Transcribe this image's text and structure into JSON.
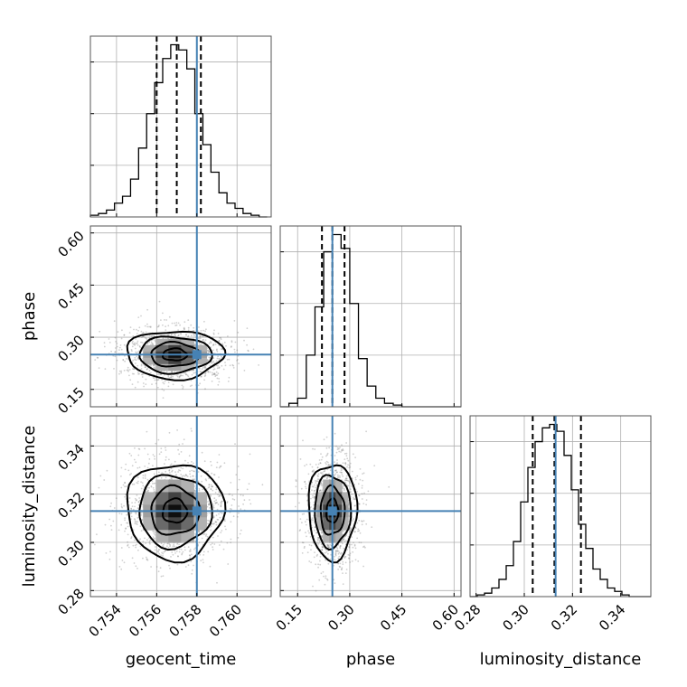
{
  "chart_data": {
    "type": "corner",
    "parameters": [
      "geocent_time",
      "phase",
      "luminosity_distance"
    ],
    "truth_color": "#4682b4",
    "truths": {
      "geocent_time": 0.758,
      "phase": 0.25,
      "luminosity_distance": 0.313
    },
    "quantiles": {
      "geocent_time": [
        0.756,
        0.757,
        0.7582
      ],
      "phase": [
        0.22,
        0.25,
        0.285
      ],
      "luminosity_distance": [
        0.3035,
        0.3125,
        0.3235
      ]
    },
    "ranges": {
      "geocent_time": [
        0.7527,
        0.7617
      ],
      "phase": [
        0.1,
        0.62
      ],
      "luminosity_distance": [
        0.2775,
        0.3525
      ]
    },
    "ticks": {
      "geocent_time": [
        0.754,
        0.756,
        0.758,
        0.76
      ],
      "phase": [
        0.15,
        0.3,
        0.45,
        0.6
      ],
      "luminosity_distance": [
        0.28,
        0.3,
        0.32,
        0.34
      ]
    },
    "tick_labels": {
      "geocent_time": [
        "0.754",
        "0.756",
        "0.758",
        "0.760"
      ],
      "phase": [
        "0.15",
        "0.30",
        "0.45",
        "0.60"
      ],
      "luminosity_distance": [
        "0.28",
        "0.30",
        "0.32",
        "0.34"
      ]
    },
    "histograms": {
      "geocent_time": {
        "bin_edges": [
          0.7527,
          0.7531,
          0.7535,
          0.7539,
          0.7543,
          0.7547,
          0.7551,
          0.7555,
          0.7559,
          0.7563,
          0.7567,
          0.7571,
          0.7575,
          0.7579,
          0.7583,
          0.7587,
          0.7591,
          0.7595,
          0.7599,
          0.7603,
          0.7607,
          0.7611,
          0.7615
        ],
        "counts": [
          0.01,
          0.02,
          0.04,
          0.08,
          0.12,
          0.22,
          0.4,
          0.6,
          0.78,
          0.92,
          1.0,
          0.97,
          0.86,
          0.6,
          0.42,
          0.26,
          0.14,
          0.08,
          0.05,
          0.02,
          0.01,
          0.0
        ]
      },
      "phase": {
        "bin_edges": [
          0.1,
          0.125,
          0.15,
          0.175,
          0.2,
          0.225,
          0.25,
          0.275,
          0.3,
          0.325,
          0.35,
          0.375,
          0.4,
          0.425,
          0.45,
          0.475,
          0.5,
          0.525,
          0.55,
          0.575,
          0.6,
          0.62
        ],
        "counts": [
          0.0,
          0.02,
          0.05,
          0.3,
          0.58,
          0.9,
          1.0,
          0.92,
          0.6,
          0.28,
          0.12,
          0.05,
          0.02,
          0.01,
          0.0,
          0.0,
          0.0,
          0.0,
          0.0,
          0.0,
          0.0
        ]
      },
      "luminosity_distance": {
        "bin_edges": [
          0.2775,
          0.2805,
          0.2835,
          0.2865,
          0.2895,
          0.2925,
          0.2955,
          0.2985,
          0.3015,
          0.3045,
          0.3075,
          0.3105,
          0.3135,
          0.3165,
          0.3195,
          0.3225,
          0.3255,
          0.3285,
          0.3315,
          0.3345,
          0.3375,
          0.3405,
          0.3435,
          0.3465,
          0.3495,
          0.3525
        ],
        "counts": [
          0.0,
          0.01,
          0.02,
          0.05,
          0.1,
          0.18,
          0.32,
          0.55,
          0.75,
          0.9,
          0.98,
          1.0,
          0.96,
          0.82,
          0.62,
          0.42,
          0.28,
          0.16,
          0.1,
          0.05,
          0.03,
          0.01,
          0.0,
          0.0,
          0.0
        ]
      }
    },
    "joint": {
      "phase_vs_geocent_time": {
        "x_center": 0.7569,
        "y_center": 0.25,
        "x_sigma": 0.00115,
        "y_sigma": 0.033
      },
      "luminosity_distance_vs_geocent_time": {
        "x_center": 0.7569,
        "y_center": 0.313,
        "x_sigma": 0.00115,
        "y_sigma": 0.0095
      },
      "luminosity_distance_vs_phase": {
        "x_center": 0.25,
        "y_center": 0.313,
        "x_sigma": 0.033,
        "y_sigma": 0.0095
      }
    },
    "grid": true
  }
}
